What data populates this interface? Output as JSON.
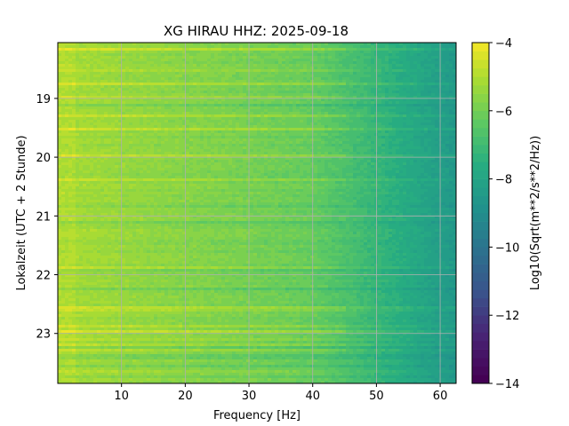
{
  "chart_data": {
    "type": "heatmap",
    "title": "XG HIRAU  HHZ: 2025-09-18",
    "xlabel": "Frequency [Hz]",
    "ylabel": "Lokalzeit (UTC + 2 Stunde)",
    "xlim": [
      0,
      62.5
    ],
    "ylim": [
      18.05,
      23.85
    ],
    "xticks": [
      10,
      20,
      30,
      40,
      50,
      60
    ],
    "yticks": [
      19,
      20,
      21,
      22,
      23
    ],
    "grid": true,
    "colormap": "viridis",
    "colorbar": {
      "label": "Log10(Sqrt(m**2/s**2/Hz))",
      "range": [
        -14,
        -4
      ],
      "ticks": [
        -4,
        -6,
        -8,
        -10,
        -12,
        -14
      ],
      "levels": 40
    },
    "description_values": {
      "low_freq_level": -5.2,
      "mid_freq_level": -6.2,
      "high_freq_level": -8.5
    }
  }
}
